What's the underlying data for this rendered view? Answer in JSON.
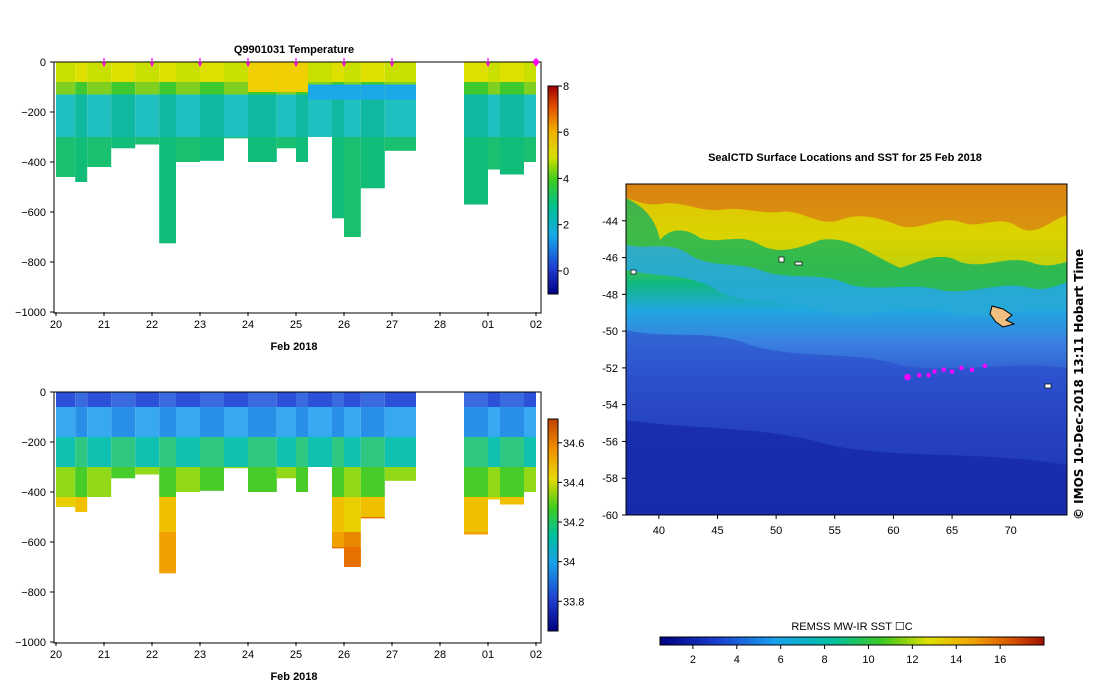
{
  "chart_data": [
    {
      "type": "heatmap",
      "title": "Q9901031  Temperature",
      "xlabel": "Feb 2018",
      "x_ticks": [
        "20",
        "21",
        "22",
        "23",
        "24",
        "25",
        "26",
        "27",
        "28",
        "01",
        "02"
      ],
      "y_ticks": [
        "0",
        "−200",
        "−400",
        "−600",
        "−800",
        "−1000"
      ],
      "ylim": [
        -1000,
        0
      ],
      "colorbar_ticks": [
        "8",
        "6",
        "4",
        "2",
        "0"
      ],
      "colorbar_range": [
        -1,
        8
      ],
      "profiles": [
        {
          "day": 20.0,
          "w": 0.4,
          "max_depth": 460
        },
        {
          "day": 20.4,
          "w": 0.25,
          "max_depth": 480
        },
        {
          "day": 20.65,
          "w": 0.5,
          "max_depth": 420
        },
        {
          "day": 21.15,
          "w": 0.5,
          "max_depth": 345
        },
        {
          "day": 21.65,
          "w": 0.5,
          "max_depth": 330
        },
        {
          "day": 22.15,
          "w": 0.35,
          "max_depth": 725
        },
        {
          "day": 22.5,
          "w": 0.5,
          "max_depth": 400
        },
        {
          "day": 23.0,
          "w": 0.5,
          "max_depth": 395
        },
        {
          "day": 23.5,
          "w": 0.5,
          "max_depth": 305
        },
        {
          "day": 24.0,
          "w": 0.6,
          "max_depth": 400
        },
        {
          "day": 24.6,
          "w": 0.4,
          "max_depth": 345
        },
        {
          "day": 25.0,
          "w": 0.25,
          "max_depth": 400
        },
        {
          "day": 25.25,
          "w": 0.5,
          "max_depth": 300
        },
        {
          "day": 25.75,
          "w": 0.25,
          "max_depth": 625
        },
        {
          "day": 26.0,
          "w": 0.35,
          "max_depth": 700
        },
        {
          "day": 26.35,
          "w": 0.5,
          "max_depth": 505
        },
        {
          "day": 26.85,
          "w": 0.65,
          "max_depth": 355
        },
        {
          "day": 28.5,
          "w": 0.5,
          "max_depth": 570
        },
        {
          "day": 29.0,
          "w": 0.25,
          "max_depth": 430
        },
        {
          "day": 29.25,
          "w": 0.5,
          "max_depth": 450
        },
        {
          "day": 29.75,
          "w": 0.25,
          "max_depth": 400
        }
      ],
      "markers": [
        21.0,
        22.0,
        23.0,
        24.0,
        25.0,
        26.0,
        27.0,
        29.0,
        30.0
      ]
    },
    {
      "type": "heatmap",
      "title": "",
      "xlabel": "Feb 2018",
      "x_ticks": [
        "20",
        "21",
        "22",
        "23",
        "24",
        "25",
        "26",
        "27",
        "28",
        "01",
        "02"
      ],
      "y_ticks": [
        "0",
        "−200",
        "−400",
        "−600",
        "−800",
        "−1000"
      ],
      "ylim": [
        -1000,
        0
      ],
      "colorbar_ticks": [
        "34.6",
        "34.4",
        "34.2",
        "34",
        "33.8"
      ],
      "colorbar_range": [
        33.65,
        34.72
      ]
    },
    {
      "type": "heatmap",
      "title": "SealCTD Surface Locations and SST for 25 Feb 2018",
      "x_ticks": [
        "40",
        "45",
        "50",
        "55",
        "60",
        "65",
        "70"
      ],
      "y_ticks": [
        "-44",
        "-46",
        "-48",
        "-50",
        "-52",
        "-54",
        "-56",
        "-58",
        "-60"
      ],
      "xlim": [
        37.2,
        74.8
      ],
      "ylim": [
        -60,
        -42
      ],
      "colorbar_label": "REMSS MW-IR SST ☐C",
      "colorbar_ticks": [
        "2",
        "4",
        "6",
        "8",
        "10",
        "12",
        "14",
        "16"
      ],
      "colorbar_range": [
        0.5,
        18.0
      ],
      "seal_track": [
        {
          "lon": 61.2,
          "lat": -52.5
        },
        {
          "lon": 62.2,
          "lat": -52.4
        },
        {
          "lon": 63.0,
          "lat": -52.4
        },
        {
          "lon": 63.5,
          "lat": -52.2
        },
        {
          "lon": 64.3,
          "lat": -52.1
        },
        {
          "lon": 65.0,
          "lat": -52.2
        },
        {
          "lon": 65.8,
          "lat": -52.0
        },
        {
          "lon": 66.7,
          "lat": -52.1
        },
        {
          "lon": 67.8,
          "lat": -51.9
        }
      ],
      "side_label": "©  IMOS 10-Dec-2018 13:11 Hobart Time"
    }
  ],
  "colors": {
    "marker": "#ff00ff",
    "ocean_dark": "#1a2bb0"
  }
}
